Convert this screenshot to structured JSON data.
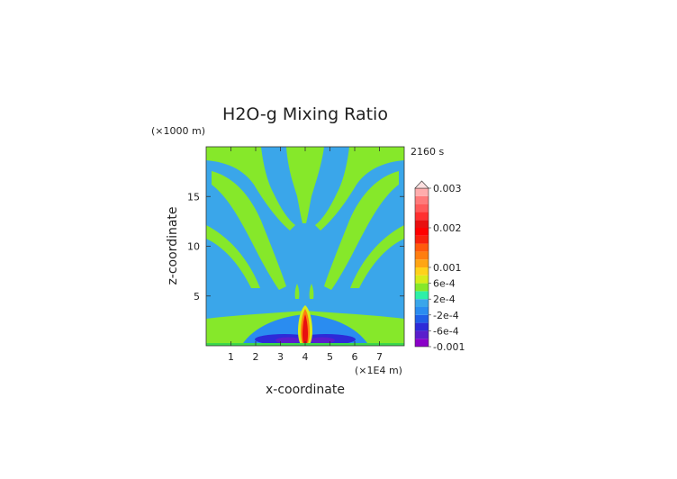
{
  "chart_data": {
    "type": "heatmap",
    "title": "H2O-g Mixing Ratio",
    "time_label": "2160 s",
    "xlabel": "x-coordinate",
    "ylabel": "z-coordinate",
    "x_unit_label": "(×1E4 m)",
    "y_unit_label": "(×1000 m)",
    "xlim": [
      0,
      8
    ],
    "ylim": [
      0,
      20
    ],
    "x_ticks": [
      1,
      2,
      3,
      4,
      5,
      6,
      7
    ],
    "x_tick_labels": [
      "1",
      "2",
      "3",
      "4",
      "5",
      "6",
      "7"
    ],
    "y_ticks": [
      5,
      10,
      15
    ],
    "y_tick_labels": [
      "5",
      "10",
      "15"
    ],
    "colorbar": {
      "levels": [
        -0.001,
        -0.0008,
        -0.0006,
        -0.0004,
        -0.0002,
        0,
        0.0002,
        0.0004,
        0.0006,
        0.0008,
        0.001,
        0.0012,
        0.0014,
        0.0016,
        0.0018,
        0.002,
        0.0022,
        0.0024,
        0.0026,
        0.0028,
        0.003
      ],
      "colors": [
        "#8a00c8",
        "#5a1ecc",
        "#2d2ad8",
        "#1f5ee8",
        "#2a8cf0",
        "#3aa6ea",
        "#2ef0a8",
        "#86e82a",
        "#d8ec1a",
        "#ffd21a",
        "#ffa514",
        "#ff7e10",
        "#ff5a0c",
        "#f8220c",
        "#ff0000",
        "#e81010",
        "#ff3030",
        "#ff5a5a",
        "#ff7a7a",
        "#ffacac"
      ],
      "tick_values": [
        0.003,
        0.002,
        0.001,
        0.0006,
        0.0002,
        -0.0002,
        -0.0006,
        -0.001
      ],
      "tick_labels": [
        "0.003",
        "0.002",
        "0.001",
        "6e-4",
        "2e-4",
        "-2e-4",
        "-6e-4",
        "-0.001"
      ]
    },
    "field_regions": [
      {
        "name": "background",
        "value": 0.0001
      },
      {
        "name": "bottom-band",
        "value": 0.0004
      },
      {
        "name": "low-dome",
        "value": -0.0001
      },
      {
        "name": "negative-lobe-left",
        "value": -0.0005
      },
      {
        "name": "negative-lobe-right",
        "value": -0.0005
      },
      {
        "name": "negative-core-left",
        "value": -0.0008
      },
      {
        "name": "negative-core-right",
        "value": -0.0008
      },
      {
        "name": "plume-outer",
        "value": 0.0007
      },
      {
        "name": "plume-middle",
        "value": 0.0012
      },
      {
        "name": "plume-inner",
        "value": 0.0021
      }
    ]
  }
}
